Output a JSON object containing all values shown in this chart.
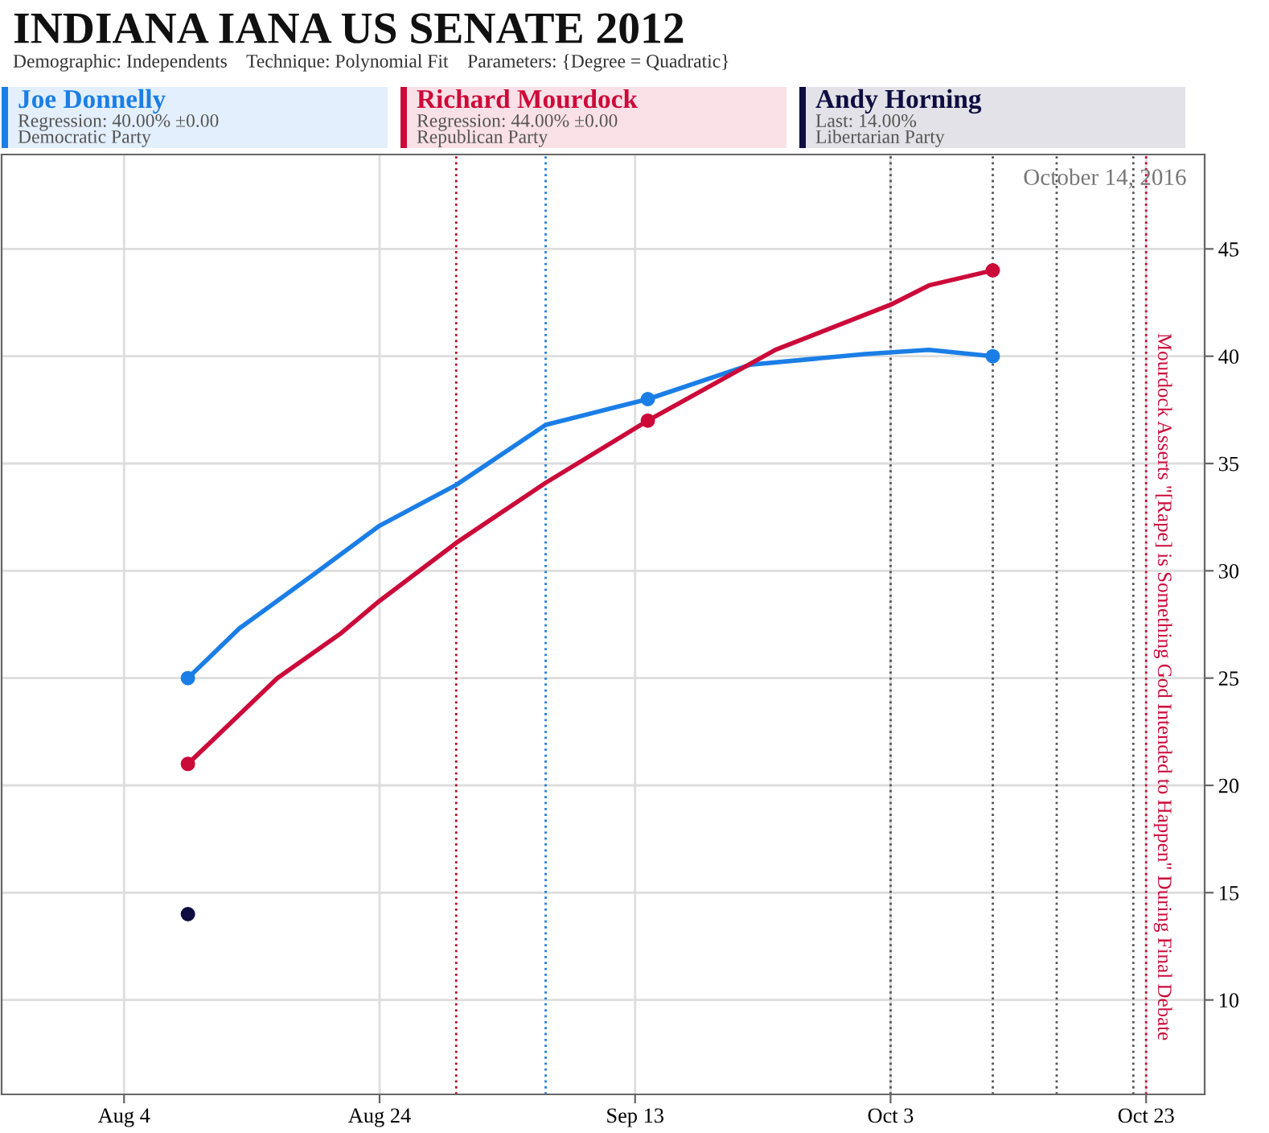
{
  "chart_data": {
    "type": "line",
    "title": "INDIANA IANA US SENATE 2012",
    "subtitle": "Demographic: Independents    Technique: Polynomial Fit    Parameters: {Degree = Quadratic}",
    "series": [
      {
        "name": "Joe Donnelly",
        "color": "#1a7ee6",
        "x": [
          "2012-08-09",
          "2012-08-13",
          "2012-08-19",
          "2012-08-24",
          "2012-08-30",
          "2012-09-06",
          "2012-09-14",
          "2012-09-22",
          "2012-10-01",
          "2012-10-06",
          "2012-10-11"
        ],
        "values": [
          25,
          27.3,
          29.9,
          32.1,
          34.0,
          36.8,
          38,
          39.6,
          40.1,
          40.3,
          40
        ]
      },
      {
        "name": "Richard Mourdock",
        "color": "#cc0a3a",
        "x": [
          "2012-08-09",
          "2012-08-16",
          "2012-08-21",
          "2012-08-24",
          "2012-08-30",
          "2012-09-06",
          "2012-09-14",
          "2012-09-24",
          "2012-10-03",
          "2012-10-06",
          "2012-10-11"
        ],
        "values": [
          21,
          25.0,
          27.1,
          28.6,
          31.3,
          34.1,
          37,
          40.3,
          42.4,
          43.3,
          44
        ]
      },
      {
        "name": "Andy Horning",
        "type": "scatter",
        "color": "#0d0d40",
        "x": [
          "2012-08-09"
        ],
        "values": [
          14
        ]
      },
      {
        "type": "scatter",
        "color": "#1a7ee6",
        "x": [
          "2012-08-09",
          "2012-09-14",
          "2012-10-11"
        ],
        "values": [
          25,
          38,
          40
        ]
      },
      {
        "type": "scatter",
        "color": "#cc0a3a",
        "x": [
          "2012-08-09",
          "2012-09-14",
          "2012-10-11"
        ],
        "values": [
          21,
          37,
          44
        ]
      }
    ],
    "annotations": [
      "Regression: 40.00% ±0.00",
      "Democratic Party",
      "Regression: 44.00% ±0.00",
      "Republican Party",
      "Last: 14.00%",
      "Libertarian Party",
      "October 14, 2016"
    ],
    "ref_lines": [
      {
        "axis": "x",
        "value": "2012-08-30",
        "color": "#b0102a",
        "line_style": "dotted"
      },
      {
        "axis": "x",
        "value": "2012-09-06",
        "color": "#1a7ee6",
        "line_style": "dotted"
      },
      {
        "axis": "x",
        "value": "2012-10-03",
        "color": "#555555",
        "line_style": "dotted"
      },
      {
        "axis": "x",
        "value": "2012-10-11",
        "color": "#555555",
        "line_style": "dotted"
      },
      {
        "axis": "x",
        "value": "2012-10-16",
        "color": "#555555",
        "line_style": "dotted"
      },
      {
        "axis": "x",
        "value": "2012-10-22",
        "color": "#555555",
        "line_style": "dotted"
      },
      {
        "axis": "x",
        "value": "2012-10-23",
        "color": "#cc0a3a",
        "line_style": "dotted",
        "label": "Mourdock Asserts \"[Rape] is Something God Intended to Happen\" During Final Debate"
      }
    ],
    "xlim": [
      "2012-07-25T10:00",
      "2012-10-27T14:00"
    ],
    "xticks": [
      {
        "value": "2012-08-04",
        "label": "Aug 4"
      },
      {
        "value": "2012-08-24",
        "label": "Aug 24"
      },
      {
        "value": "2012-09-13",
        "label": "Sep 13"
      },
      {
        "value": "2012-10-03",
        "label": "Oct 3"
      },
      {
        "value": "2012-10-23",
        "label": "Oct 23"
      }
    ],
    "ylim": [
      5.6,
      49.4
    ],
    "yticks": [
      10,
      15,
      20,
      25,
      30,
      35,
      40,
      45
    ],
    "grid": true,
    "legend": "top",
    "line_style": "solid"
  }
}
